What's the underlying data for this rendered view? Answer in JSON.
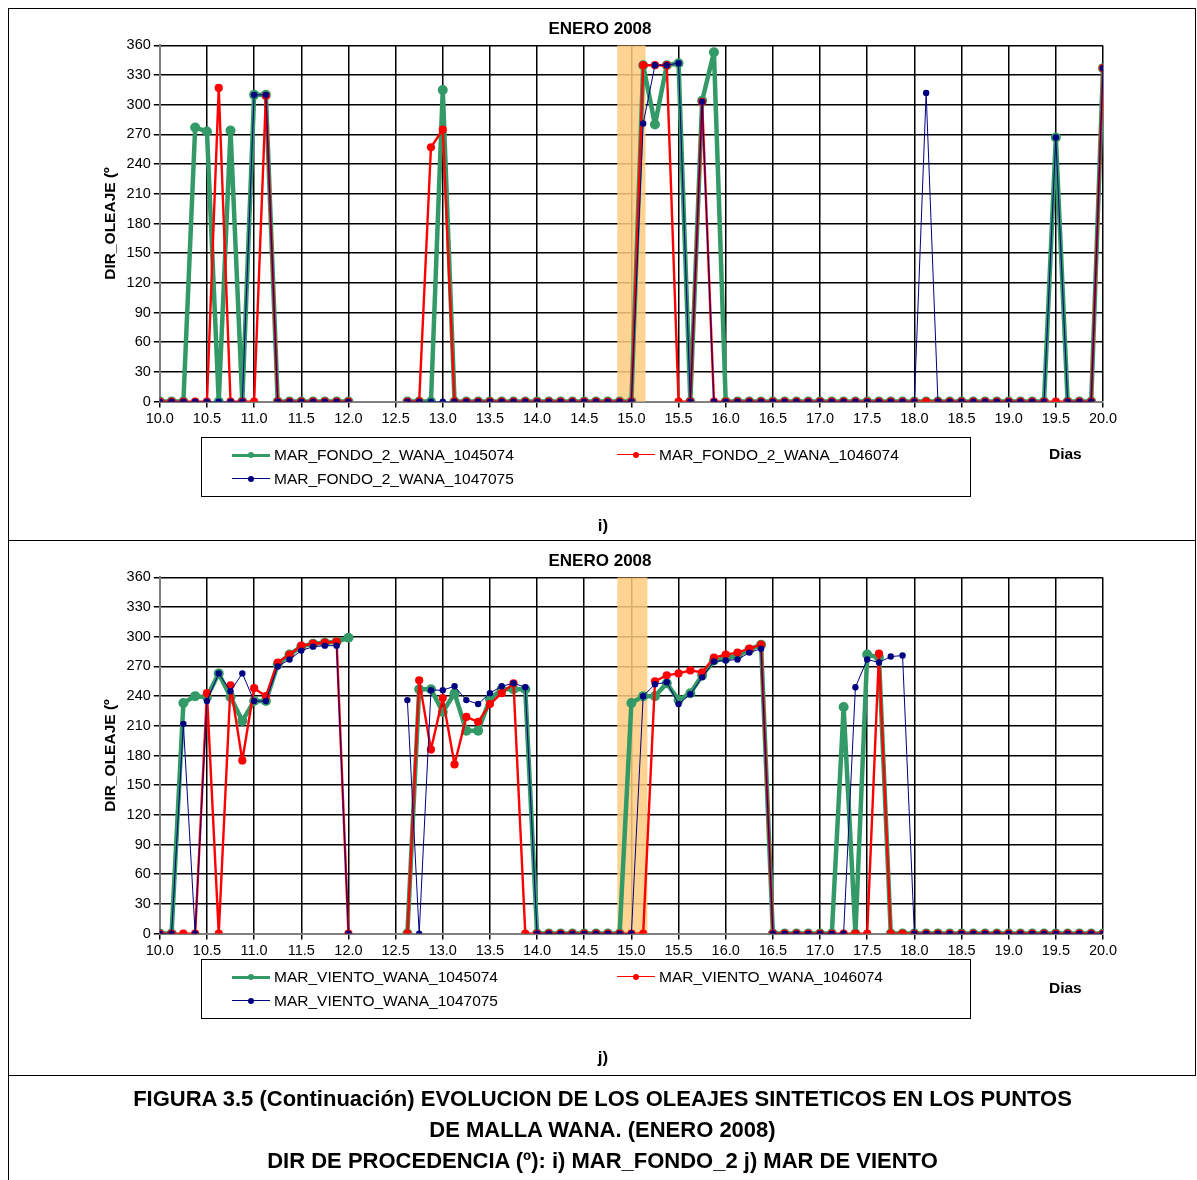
{
  "chart_data": [
    {
      "type": "line",
      "title": "ENERO 2008",
      "xlabel": "Dias",
      "ylabel": "DIR_OLEAJE (º",
      "x": [
        10,
        10.125,
        10.25,
        10.375,
        10.5,
        10.625,
        10.75,
        10.875,
        11,
        11.125,
        11.25,
        11.375,
        11.5,
        11.625,
        11.75,
        11.875,
        12,
        12.125,
        12.25,
        12.375,
        12.5,
        12.625,
        12.75,
        12.875,
        13,
        13.125,
        13.25,
        13.375,
        13.5,
        13.625,
        13.75,
        13.875,
        14,
        14.125,
        14.25,
        14.375,
        14.5,
        14.625,
        14.75,
        14.875,
        15,
        15.125,
        15.25,
        15.375,
        15.5,
        15.625,
        15.75,
        15.875,
        16,
        16.125,
        16.25,
        16.375,
        16.5,
        16.625,
        16.75,
        16.875,
        17,
        17.125,
        17.25,
        17.375,
        17.5,
        17.625,
        17.75,
        17.875,
        18,
        18.125,
        18.25,
        18.375,
        18.5,
        18.625,
        18.75,
        18.875,
        19,
        19.125,
        19.25,
        19.375,
        19.5,
        19.625,
        19.75,
        19.875,
        20
      ],
      "series": [
        {
          "name": "MAR_FONDO_2_WANA_1045074",
          "color": "#339966",
          "values": [
            0,
            0,
            0,
            277,
            273,
            0,
            274,
            0,
            310,
            310,
            0,
            0,
            0,
            0,
            0,
            0,
            0,
            null,
            null,
            null,
            null,
            0,
            0,
            0,
            315,
            0,
            0,
            0,
            0,
            0,
            0,
            0,
            0,
            0,
            0,
            0,
            0,
            0,
            0,
            0,
            0,
            340,
            280,
            340,
            342,
            0,
            304,
            353,
            0,
            0,
            0,
            0,
            0,
            0,
            0,
            0,
            0,
            0,
            0,
            0,
            0,
            0,
            0,
            0,
            0,
            0,
            0,
            0,
            0,
            0,
            0,
            0,
            0,
            0,
            0,
            0,
            267,
            0,
            0,
            0,
            337
          ]
        },
        {
          "name": "MAR_FONDO_2_WANA_1046074",
          "color": "#ff0000",
          "values": [
            0,
            0,
            0,
            0,
            0,
            317,
            0,
            0,
            0,
            309,
            0,
            0,
            0,
            0,
            0,
            0,
            0,
            null,
            null,
            null,
            null,
            0,
            0,
            257,
            275,
            0,
            0,
            0,
            0,
            0,
            0,
            0,
            0,
            0,
            0,
            0,
            0,
            0,
            0,
            0,
            0,
            340,
            340,
            340,
            0,
            0,
            303,
            0,
            0,
            0,
            0,
            0,
            0,
            0,
            0,
            0,
            0,
            0,
            0,
            0,
            0,
            0,
            0,
            0,
            0,
            0,
            0,
            0,
            0,
            0,
            0,
            0,
            0,
            0,
            0,
            0,
            0,
            0,
            0,
            0,
            337
          ]
        },
        {
          "name": "MAR_FONDO_2_WANA_1047075",
          "color": "#000080",
          "values": [
            0,
            0,
            0,
            0,
            0,
            0,
            0,
            0,
            310,
            310,
            0,
            0,
            0,
            0,
            0,
            0,
            0,
            null,
            null,
            null,
            null,
            0,
            0,
            0,
            0,
            0,
            0,
            0,
            0,
            0,
            0,
            0,
            0,
            0,
            0,
            0,
            0,
            0,
            0,
            0,
            0,
            281,
            340,
            340,
            342,
            0,
            303,
            0,
            0,
            0,
            0,
            0,
            0,
            0,
            0,
            0,
            0,
            0,
            0,
            0,
            0,
            0,
            0,
            0,
            0,
            312,
            0,
            0,
            0,
            0,
            0,
            0,
            0,
            0,
            0,
            0,
            267,
            0,
            0,
            0,
            337
          ]
        }
      ],
      "xlim": [
        10,
        20
      ],
      "xticks": [
        {
          "value": 10,
          "label": "10.0"
        },
        {
          "value": 10.5,
          "label": "10.5"
        },
        {
          "value": 11,
          "label": "11.0"
        },
        {
          "value": 11.5,
          "label": "11.5"
        },
        {
          "value": 12,
          "label": "12.0"
        },
        {
          "value": 12.5,
          "label": "12.5"
        },
        {
          "value": 13,
          "label": "13.0"
        },
        {
          "value": 13.5,
          "label": "13.5"
        },
        {
          "value": 14,
          "label": "14.0"
        },
        {
          "value": 14.5,
          "label": "14.5"
        },
        {
          "value": 15,
          "label": "15.0"
        },
        {
          "value": 15.5,
          "label": "15.5"
        },
        {
          "value": 16,
          "label": "16.0"
        },
        {
          "value": 16.5,
          "label": "16.5"
        },
        {
          "value": 17,
          "label": "17.0"
        },
        {
          "value": 17.5,
          "label": "17.5"
        },
        {
          "value": 18,
          "label": "18.0"
        },
        {
          "value": 18.5,
          "label": "18.5"
        },
        {
          "value": 19,
          "label": "19.0"
        },
        {
          "value": 19.5,
          "label": "19.5"
        },
        {
          "value": 20,
          "label": "20.0"
        }
      ],
      "ylim": [
        0,
        360
      ],
      "yticks": [
        0,
        30,
        60,
        90,
        120,
        150,
        180,
        210,
        240,
        270,
        300,
        330,
        360
      ],
      "bands": [
        {
          "axis": "x",
          "from": 14.85,
          "to": 15.15,
          "color": "#ffcc80"
        }
      ],
      "grid": true,
      "legend": "bottom",
      "marker": "circle",
      "line_style": "solid",
      "annotations": [
        "i)"
      ]
    },
    {
      "type": "line",
      "title": "ENERO 2008",
      "xlabel": "Dias",
      "ylabel": "DIR_OLEAJE (º",
      "x": [
        10,
        10.125,
        10.25,
        10.375,
        10.5,
        10.625,
        10.75,
        10.875,
        11,
        11.125,
        11.25,
        11.375,
        11.5,
        11.625,
        11.75,
        11.875,
        12,
        12.125,
        12.25,
        12.375,
        12.5,
        12.625,
        12.75,
        12.875,
        13,
        13.125,
        13.25,
        13.375,
        13.5,
        13.625,
        13.75,
        13.875,
        14,
        14.125,
        14.25,
        14.375,
        14.5,
        14.625,
        14.75,
        14.875,
        15,
        15.125,
        15.25,
        15.375,
        15.5,
        15.625,
        15.75,
        15.875,
        16,
        16.125,
        16.25,
        16.375,
        16.5,
        16.625,
        16.75,
        16.875,
        17,
        17.125,
        17.25,
        17.375,
        17.5,
        17.625,
        17.75,
        17.875,
        18,
        18.125,
        18.25,
        18.375,
        18.5,
        18.625,
        18.75,
        18.875,
        19,
        19.125,
        19.25,
        19.375,
        19.5,
        19.625,
        19.75,
        19.875,
        20
      ],
      "series": [
        {
          "name": "MAR_VIENTO_WANA_1045074",
          "color": "#339966",
          "values": [
            0,
            0,
            233,
            240,
            239,
            263,
            239,
            215,
            235,
            235,
            272,
            282,
            290,
            293,
            294,
            295,
            299,
            null,
            null,
            null,
            null,
            0,
            247,
            247,
            224,
            243,
            205,
            205,
            237,
            247,
            247,
            247,
            0,
            0,
            0,
            0,
            0,
            0,
            0,
            0,
            233,
            240,
            240,
            253,
            236,
            243,
            261,
            276,
            278,
            281,
            287,
            292,
            0,
            0,
            0,
            0,
            0,
            0,
            229,
            0,
            282,
            279,
            0,
            0,
            0,
            0,
            0,
            0,
            0,
            0,
            0,
            0,
            0,
            0,
            0,
            0,
            0,
            0,
            0,
            0,
            0
          ]
        },
        {
          "name": "MAR_VIENTO_WANA_1046074",
          "color": "#ff0000",
          "values": [
            0,
            0,
            0,
            0,
            243,
            0,
            251,
            175,
            248,
            240,
            274,
            282,
            291,
            293,
            294,
            295,
            0,
            null,
            null,
            null,
            null,
            0,
            256,
            186,
            238,
            171,
            219,
            214,
            232,
            243,
            253,
            0,
            0,
            0,
            0,
            0,
            0,
            0,
            0,
            0,
            0,
            0,
            255,
            261,
            263,
            266,
            264,
            279,
            282,
            284,
            288,
            292,
            0,
            0,
            0,
            0,
            0,
            0,
            0,
            0,
            0,
            283,
            0,
            0,
            0,
            0,
            0,
            0,
            0,
            0,
            0,
            0,
            0,
            0,
            0,
            0,
            0,
            0,
            0,
            0,
            0
          ]
        },
        {
          "name": "MAR_VIENTO_WANA_1047075",
          "color": "#000080",
          "values": [
            0,
            0,
            212,
            0,
            235,
            263,
            245,
            263,
            235,
            235,
            270,
            277,
            286,
            290,
            291,
            291,
            0,
            null,
            null,
            null,
            null,
            236,
            0,
            246,
            246,
            250,
            236,
            232,
            243,
            250,
            253,
            249,
            0,
            0,
            0,
            0,
            0,
            0,
            0,
            0,
            0,
            240,
            252,
            254,
            232,
            242,
            259,
            275,
            276,
            277,
            284,
            288,
            0,
            0,
            0,
            0,
            0,
            0,
            0,
            249,
            277,
            274,
            280,
            281,
            0,
            0,
            0,
            0,
            0,
            0,
            0,
            0,
            0,
            0,
            0,
            0,
            0,
            0,
            0,
            0,
            0
          ]
        }
      ],
      "xlim": [
        10,
        20
      ],
      "xticks": [
        {
          "value": 10,
          "label": "10.0"
        },
        {
          "value": 10.5,
          "label": "10.5"
        },
        {
          "value": 11,
          "label": "11.0"
        },
        {
          "value": 11.5,
          "label": "11.5"
        },
        {
          "value": 12,
          "label": "12.0"
        },
        {
          "value": 12.5,
          "label": "12.5"
        },
        {
          "value": 13,
          "label": "13.0"
        },
        {
          "value": 13.5,
          "label": "13.5"
        },
        {
          "value": 14,
          "label": "14.0"
        },
        {
          "value": 14.5,
          "label": "14.5"
        },
        {
          "value": 15,
          "label": "15.0"
        },
        {
          "value": 15.5,
          "label": "15.5"
        },
        {
          "value": 16,
          "label": "16.0"
        },
        {
          "value": 16.5,
          "label": "16.5"
        },
        {
          "value": 17,
          "label": "17.0"
        },
        {
          "value": 17.5,
          "label": "17.5"
        },
        {
          "value": 18,
          "label": "18.0"
        },
        {
          "value": 18.5,
          "label": "18.5"
        },
        {
          "value": 19,
          "label": "19.0"
        },
        {
          "value": 19.5,
          "label": "19.5"
        },
        {
          "value": 20,
          "label": "20.0"
        }
      ],
      "ylim": [
        0,
        360
      ],
      "yticks": [
        0,
        30,
        60,
        90,
        120,
        150,
        180,
        210,
        240,
        270,
        300,
        330,
        360
      ],
      "bands": [
        {
          "axis": "x",
          "from": 14.85,
          "to": 15.17,
          "color": "#ffcc80"
        }
      ],
      "grid": true,
      "legend": "bottom",
      "marker": "circle",
      "line_style": "solid",
      "annotations": [
        "j)",
        "FIGURA 3.5 (Continuación) EVOLUCION DE LOS OLEAJES SINTETICOS EN LOS PUNTOS",
        "DE MALLA WANA. (ENERO 2008)",
        "DIR DE PROCEDENCIA (º):   i) MAR_FONDO_2  j) MAR DE VIENTO"
      ]
    }
  ]
}
